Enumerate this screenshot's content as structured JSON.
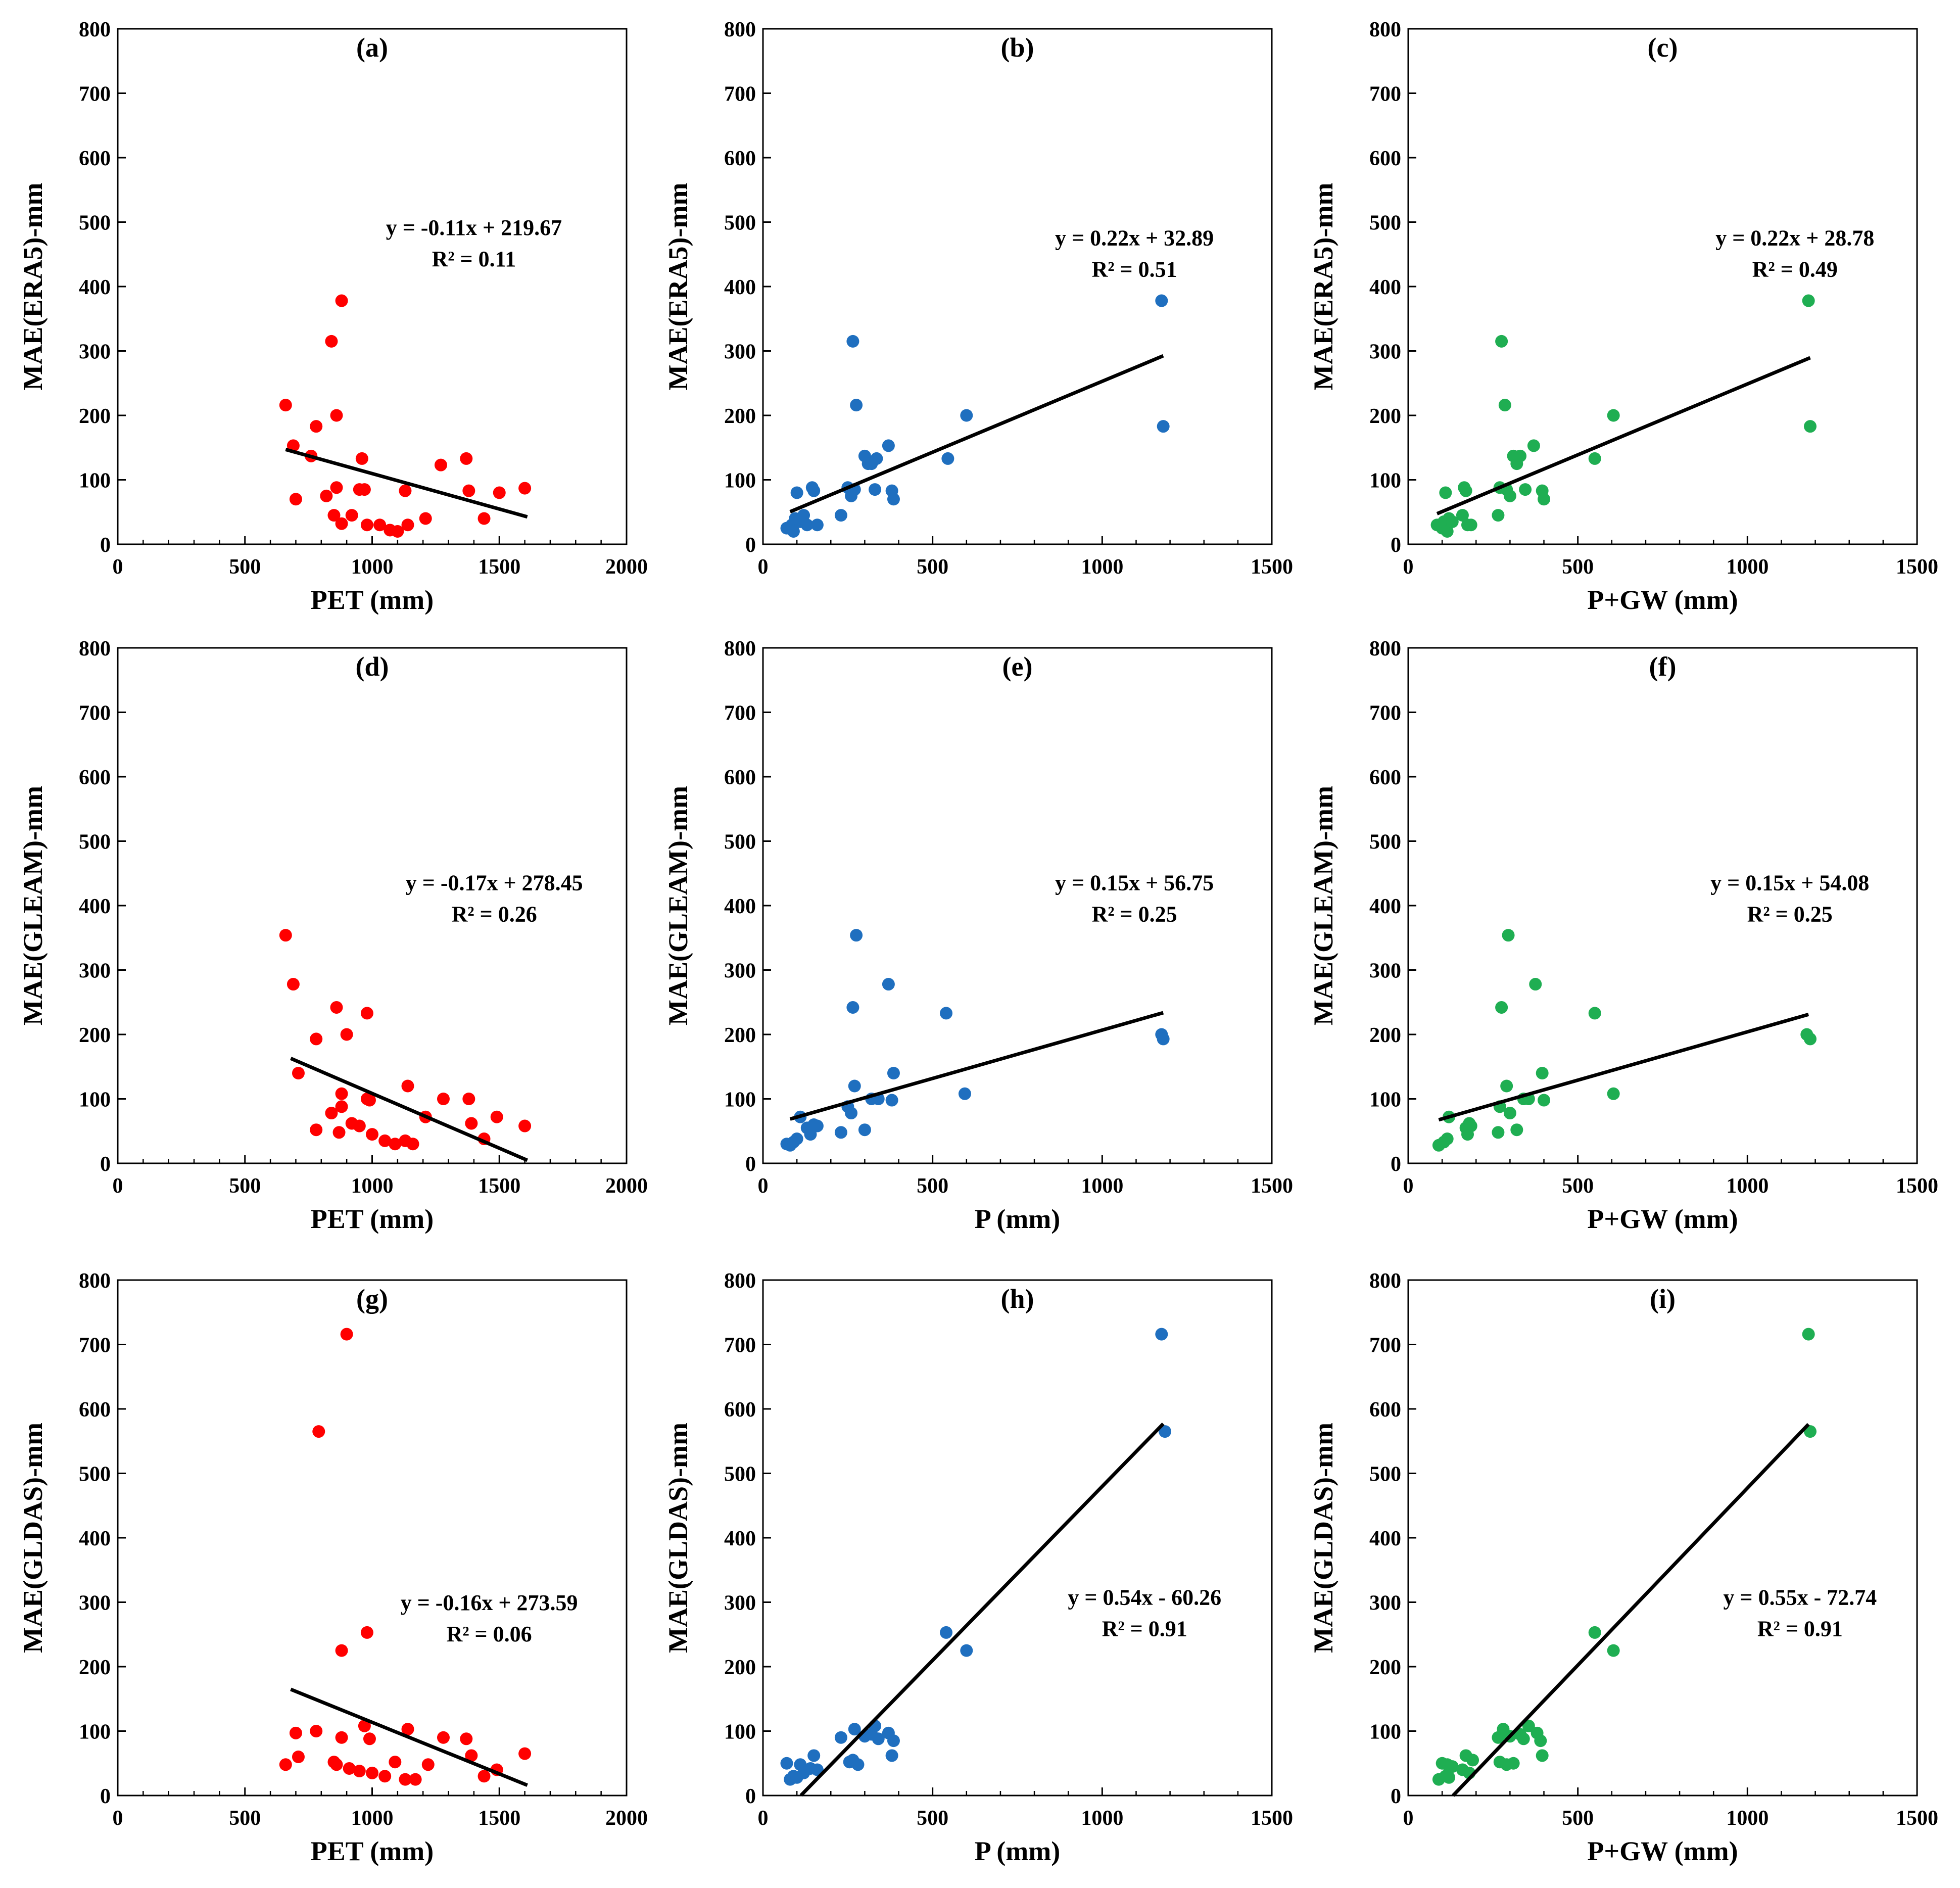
{
  "chart_data": [
    {
      "type": "scatter",
      "panel_label": "(a)",
      "xlabel": "PET (mm)",
      "ylabel": "MAE(ERA5)-mm",
      "xlim": [
        0,
        2000
      ],
      "ylim": [
        0,
        800
      ],
      "xticks": [
        0,
        500,
        1000,
        1500,
        2000
      ],
      "yticks": [
        0,
        100,
        200,
        300,
        400,
        500,
        600,
        700,
        800
      ],
      "color": "#ff0000",
      "points": [
        [
          660,
          216
        ],
        [
          690,
          153
        ],
        [
          700,
          70
        ],
        [
          760,
          137
        ],
        [
          780,
          183
        ],
        [
          820,
          75
        ],
        [
          840,
          315
        ],
        [
          850,
          45
        ],
        [
          860,
          88
        ],
        [
          860,
          200
        ],
        [
          880,
          378
        ],
        [
          880,
          32
        ],
        [
          920,
          45
        ],
        [
          950,
          85
        ],
        [
          960,
          133
        ],
        [
          970,
          85
        ],
        [
          980,
          30
        ],
        [
          1030,
          30
        ],
        [
          1070,
          22
        ],
        [
          1100,
          20
        ],
        [
          1130,
          83
        ],
        [
          1140,
          30
        ],
        [
          1210,
          40
        ],
        [
          1270,
          123
        ],
        [
          1370,
          133
        ],
        [
          1380,
          83
        ],
        [
          1440,
          40
        ],
        [
          1500,
          80
        ],
        [
          1600,
          87
        ]
      ],
      "trend": {
        "slope": -0.11,
        "intercept": 219.67,
        "x_range": [
          660,
          1610
        ]
      },
      "equation": "y = -0.11x + 219.67",
      "r2": "R² = 0.11"
    },
    {
      "type": "scatter",
      "panel_label": "(b)",
      "xlabel": "",
      "ylabel": "MAE(ERA5)-mm",
      "xlim": [
        0,
        1500
      ],
      "ylim": [
        0,
        800
      ],
      "xticks": [
        0,
        500,
        1000,
        1500
      ],
      "yticks": [
        0,
        100,
        200,
        300,
        400,
        500,
        600,
        700,
        800
      ],
      "color": "#1f6fbf",
      "points": [
        [
          70,
          25
        ],
        [
          85,
          30
        ],
        [
          90,
          20
        ],
        [
          95,
          40
        ],
        [
          100,
          80
        ],
        [
          110,
          35
        ],
        [
          120,
          45
        ],
        [
          130,
          30
        ],
        [
          145,
          88
        ],
        [
          150,
          83
        ],
        [
          160,
          30
        ],
        [
          230,
          45
        ],
        [
          250,
          88
        ],
        [
          260,
          75
        ],
        [
          265,
          315
        ],
        [
          270,
          85
        ],
        [
          275,
          216
        ],
        [
          300,
          137
        ],
        [
          310,
          125
        ],
        [
          320,
          125
        ],
        [
          330,
          85
        ],
        [
          335,
          133
        ],
        [
          370,
          153
        ],
        [
          380,
          83
        ],
        [
          385,
          70
        ],
        [
          545,
          133
        ],
        [
          600,
          200
        ],
        [
          1175,
          378
        ],
        [
          1180,
          183
        ]
      ],
      "trend": {
        "slope": 0.22,
        "intercept": 32.89,
        "x_range": [
          80,
          1180
        ]
      },
      "equation": "y = 0.22x + 32.89",
      "r2": "R² = 0.51"
    },
    {
      "type": "scatter",
      "panel_label": "(c)",
      "xlabel": "P+GW (mm)",
      "ylabel": "MAE(ERA5)-mm",
      "xlim": [
        0,
        1500
      ],
      "ylim": [
        0,
        800
      ],
      "xticks": [
        0,
        500,
        1000,
        1500
      ],
      "yticks": [
        0,
        100,
        200,
        300,
        400,
        500,
        600,
        700,
        800
      ],
      "color": "#1fae52",
      "points": [
        [
          85,
          30
        ],
        [
          100,
          25
        ],
        [
          105,
          35
        ],
        [
          110,
          80
        ],
        [
          115,
          20
        ],
        [
          120,
          40
        ],
        [
          130,
          35
        ],
        [
          160,
          45
        ],
        [
          165,
          88
        ],
        [
          170,
          83
        ],
        [
          175,
          30
        ],
        [
          185,
          30
        ],
        [
          265,
          45
        ],
        [
          270,
          88
        ],
        [
          275,
          315
        ],
        [
          285,
          216
        ],
        [
          290,
          85
        ],
        [
          300,
          75
        ],
        [
          310,
          137
        ],
        [
          320,
          125
        ],
        [
          330,
          137
        ],
        [
          345,
          85
        ],
        [
          370,
          153
        ],
        [
          395,
          83
        ],
        [
          400,
          70
        ],
        [
          550,
          133
        ],
        [
          605,
          200
        ],
        [
          1180,
          378
        ],
        [
          1185,
          183
        ]
      ],
      "trend": {
        "slope": 0.22,
        "intercept": 28.78,
        "x_range": [
          85,
          1185
        ]
      },
      "equation": "y = 0.22x + 28.78",
      "r2": "R² = 0.49"
    },
    {
      "type": "scatter",
      "panel_label": "(d)",
      "xlabel": "PET (mm)",
      "ylabel": "MAE(GLEAM)-mm",
      "xlim": [
        0,
        2000
      ],
      "ylim": [
        0,
        800
      ],
      "xticks": [
        0,
        500,
        1000,
        1500,
        2000
      ],
      "yticks": [
        0,
        100,
        200,
        300,
        400,
        500,
        600,
        700,
        800
      ],
      "color": "#ff0000",
      "points": [
        [
          660,
          354
        ],
        [
          690,
          278
        ],
        [
          710,
          140
        ],
        [
          780,
          193
        ],
        [
          780,
          52
        ],
        [
          840,
          78
        ],
        [
          860,
          242
        ],
        [
          870,
          48
        ],
        [
          880,
          108
        ],
        [
          880,
          88
        ],
        [
          900,
          200
        ],
        [
          920,
          62
        ],
        [
          950,
          58
        ],
        [
          980,
          100
        ],
        [
          980,
          233
        ],
        [
          990,
          98
        ],
        [
          1000,
          45
        ],
        [
          1050,
          35
        ],
        [
          1090,
          30
        ],
        [
          1130,
          35
        ],
        [
          1140,
          120
        ],
        [
          1160,
          30
        ],
        [
          1210,
          72
        ],
        [
          1280,
          100
        ],
        [
          1380,
          100
        ],
        [
          1390,
          62
        ],
        [
          1440,
          38
        ],
        [
          1490,
          72
        ],
        [
          1600,
          58
        ]
      ],
      "trend": {
        "slope": -0.17,
        "intercept": 278.45,
        "x_range": [
          680,
          1610
        ]
      },
      "equation": "y = -0.17x + 278.45",
      "r2": "R² = 0.26"
    },
    {
      "type": "scatter",
      "panel_label": "(e)",
      "xlabel": "P (mm)",
      "ylabel": "MAE(GLEAM)-mm",
      "xlim": [
        0,
        1500
      ],
      "ylim": [
        0,
        800
      ],
      "xticks": [
        0,
        500,
        1000,
        1500
      ],
      "yticks": [
        0,
        100,
        200,
        300,
        400,
        500,
        600,
        700,
        800
      ],
      "color": "#1f6fbf",
      "points": [
        [
          70,
          30
        ],
        [
          80,
          28
        ],
        [
          90,
          33
        ],
        [
          100,
          38
        ],
        [
          110,
          72
        ],
        [
          130,
          55
        ],
        [
          140,
          45
        ],
        [
          150,
          60
        ],
        [
          160,
          58
        ],
        [
          230,
          48
        ],
        [
          250,
          88
        ],
        [
          260,
          78
        ],
        [
          265,
          242
        ],
        [
          270,
          120
        ],
        [
          275,
          354
        ],
        [
          300,
          52
        ],
        [
          320,
          100
        ],
        [
          340,
          100
        ],
        [
          370,
          278
        ],
        [
          380,
          98
        ],
        [
          385,
          140
        ],
        [
          540,
          233
        ],
        [
          595,
          108
        ],
        [
          1175,
          200
        ],
        [
          1180,
          193
        ]
      ],
      "trend": {
        "slope": 0.15,
        "intercept": 56.75,
        "x_range": [
          80,
          1180
        ]
      },
      "equation": "y = 0.15x + 56.75",
      "r2": "R² = 0.25"
    },
    {
      "type": "scatter",
      "panel_label": "(f)",
      "xlabel": "P+GW (mm)",
      "ylabel": "MAE(GLEAM)-mm",
      "xlim": [
        0,
        1500
      ],
      "ylim": [
        0,
        800
      ],
      "xticks": [
        0,
        500,
        1000,
        1500
      ],
      "yticks": [
        0,
        100,
        200,
        300,
        400,
        500,
        600,
        700,
        800
      ],
      "color": "#1fae52",
      "points": [
        [
          90,
          28
        ],
        [
          105,
          33
        ],
        [
          115,
          38
        ],
        [
          120,
          72
        ],
        [
          170,
          55
        ],
        [
          175,
          45
        ],
        [
          180,
          62
        ],
        [
          185,
          58
        ],
        [
          265,
          48
        ],
        [
          270,
          88
        ],
        [
          275,
          242
        ],
        [
          290,
          120
        ],
        [
          295,
          354
        ],
        [
          300,
          78
        ],
        [
          320,
          52
        ],
        [
          340,
          100
        ],
        [
          355,
          100
        ],
        [
          375,
          278
        ],
        [
          395,
          140
        ],
        [
          400,
          98
        ],
        [
          550,
          233
        ],
        [
          605,
          108
        ],
        [
          1175,
          200
        ],
        [
          1185,
          193
        ]
      ],
      "trend": {
        "slope": 0.15,
        "intercept": 54.08,
        "x_range": [
          90,
          1180
        ]
      },
      "equation": "y = 0.15x + 54.08",
      "r2": "R² = 0.25"
    },
    {
      "type": "scatter",
      "panel_label": "(g)",
      "xlabel": "PET (mm)",
      "ylabel": "MAE(GLDAS)-mm",
      "xlim": [
        0,
        2000
      ],
      "ylim": [
        0,
        800
      ],
      "xticks": [
        0,
        500,
        1000,
        1500,
        2000
      ],
      "yticks": [
        0,
        100,
        200,
        300,
        400,
        500,
        600,
        700,
        800
      ],
      "color": "#ff0000",
      "points": [
        [
          660,
          48
        ],
        [
          700,
          97
        ],
        [
          710,
          60
        ],
        [
          780,
          100
        ],
        [
          790,
          565
        ],
        [
          850,
          52
        ],
        [
          860,
          48
        ],
        [
          880,
          90
        ],
        [
          880,
          225
        ],
        [
          900,
          716
        ],
        [
          910,
          42
        ],
        [
          950,
          38
        ],
        [
          970,
          108
        ],
        [
          980,
          253
        ],
        [
          990,
          88
        ],
        [
          1000,
          35
        ],
        [
          1050,
          30
        ],
        [
          1090,
          52
        ],
        [
          1130,
          25
        ],
        [
          1140,
          103
        ],
        [
          1170,
          25
        ],
        [
          1220,
          48
        ],
        [
          1280,
          90
        ],
        [
          1370,
          88
        ],
        [
          1390,
          62
        ],
        [
          1440,
          30
        ],
        [
          1490,
          40
        ],
        [
          1600,
          65
        ]
      ],
      "trend": {
        "slope": -0.16,
        "intercept": 273.59,
        "x_range": [
          680,
          1610
        ]
      },
      "equation": "y = -0.16x + 273.59",
      "r2": "R² = 0.06"
    },
    {
      "type": "scatter",
      "panel_label": "(h)",
      "xlabel": "P (mm)",
      "ylabel": "MAE(GLDAS)-mm",
      "xlim": [
        0,
        1500
      ],
      "ylim": [
        0,
        800
      ],
      "xticks": [
        0,
        500,
        1000,
        1500
      ],
      "yticks": [
        0,
        100,
        200,
        300,
        400,
        500,
        600,
        700,
        800
      ],
      "color": "#1f6fbf",
      "points": [
        [
          70,
          50
        ],
        [
          80,
          25
        ],
        [
          90,
          30
        ],
        [
          100,
          28
        ],
        [
          110,
          48
        ],
        [
          120,
          35
        ],
        [
          140,
          42
        ],
        [
          150,
          62
        ],
        [
          160,
          40
        ],
        [
          230,
          90
        ],
        [
          255,
          52
        ],
        [
          265,
          55
        ],
        [
          270,
          103
        ],
        [
          280,
          48
        ],
        [
          300,
          92
        ],
        [
          320,
          95
        ],
        [
          330,
          108
        ],
        [
          340,
          88
        ],
        [
          370,
          97
        ],
        [
          380,
          62
        ],
        [
          385,
          85
        ],
        [
          540,
          253
        ],
        [
          600,
          225
        ],
        [
          1175,
          716
        ],
        [
          1185,
          565
        ]
      ],
      "trend": {
        "slope": 0.54,
        "intercept": -60.26,
        "x_range": [
          112,
          1180
        ]
      },
      "equation": "y = 0.54x - 60.26",
      "r2": "R² = 0.91"
    },
    {
      "type": "scatter",
      "panel_label": "(i)",
      "xlabel": "P+GW (mm)",
      "ylabel": "MAE(GLDAS)-mm",
      "xlim": [
        0,
        1500
      ],
      "ylim": [
        0,
        800
      ],
      "xticks": [
        0,
        500,
        1000,
        1500
      ],
      "yticks": [
        0,
        100,
        200,
        300,
        400,
        500,
        600,
        700,
        800
      ],
      "color": "#1fae52",
      "points": [
        [
          90,
          25
        ],
        [
          100,
          50
        ],
        [
          110,
          30
        ],
        [
          115,
          48
        ],
        [
          120,
          28
        ],
        [
          130,
          45
        ],
        [
          160,
          40
        ],
        [
          170,
          62
        ],
        [
          180,
          35
        ],
        [
          190,
          55
        ],
        [
          265,
          90
        ],
        [
          270,
          52
        ],
        [
          280,
          103
        ],
        [
          290,
          48
        ],
        [
          300,
          92
        ],
        [
          310,
          50
        ],
        [
          330,
          95
        ],
        [
          340,
          88
        ],
        [
          355,
          108
        ],
        [
          380,
          97
        ],
        [
          390,
          85
        ],
        [
          395,
          62
        ],
        [
          550,
          253
        ],
        [
          605,
          225
        ],
        [
          1180,
          716
        ],
        [
          1185,
          565
        ]
      ],
      "trend": {
        "slope": 0.55,
        "intercept": -72.74,
        "x_range": [
          132,
          1180
        ]
      },
      "equation": "y = 0.55x - 72.74",
      "r2": "R² = 0.91"
    }
  ]
}
